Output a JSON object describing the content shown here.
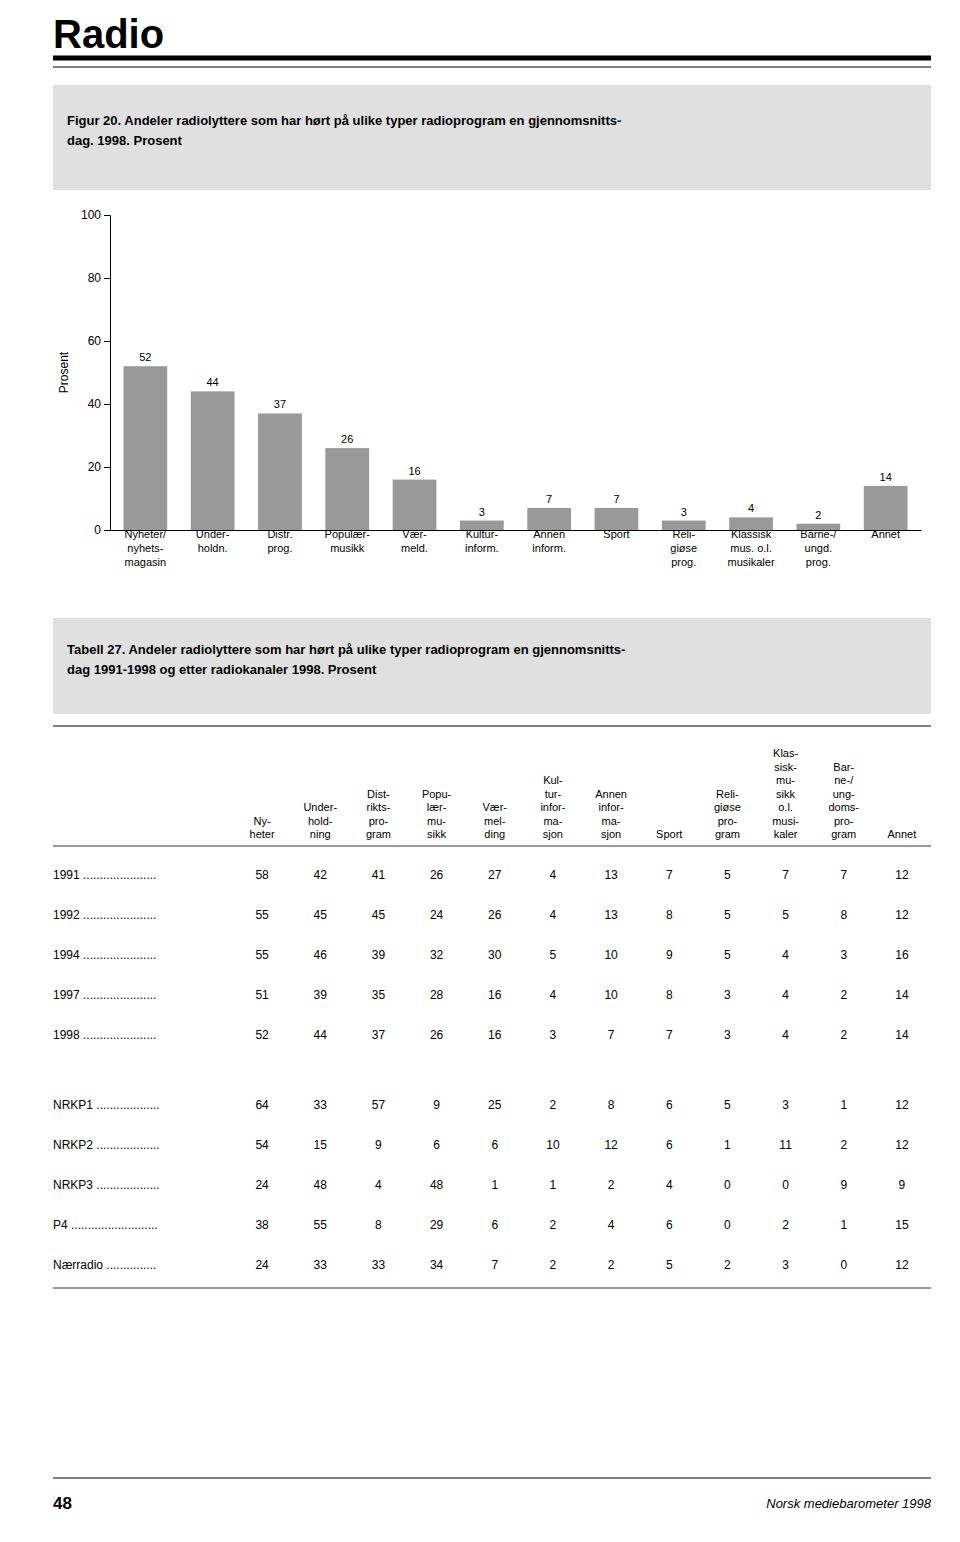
{
  "heading": "Radio",
  "chart_data": [
    {
      "type": "bar",
      "title": "Figur 20.  Andeler radiolyttere som har hørt på ulike typer radioprogram en gjennomsnitts-\ndag. 1998. Prosent",
      "ylabel": "Prosent",
      "categories": [
        "Nyheter/\nnyhets-\nmagasin",
        "Under-\nholdn.",
        "Distr.\nprog.",
        "Populær-\nmusikk",
        "Vær-\nmeld.",
        "Kultur-\ninform.",
        "Annen\ninform.",
        "Sport",
        "Reli-\ngiøse\nprog.",
        "Klassisk\nmus. o.l.\nmusikaler",
        "Barne-/\nungd.\nprog.",
        "Annet"
      ],
      "values": [
        52,
        44,
        37,
        26,
        16,
        3,
        7,
        7,
        3,
        4,
        2,
        14
      ],
      "color": "#999999",
      "ylim": [
        0,
        100
      ],
      "yticks": [
        0,
        20,
        40,
        60,
        80,
        100
      ],
      "grid": false,
      "data_labels": true
    },
    {
      "type": "table",
      "title": "Tabell 27.  Andeler radiolyttere som har hørt på ulike typer radioprogram en gjennomsnitts-\ndag 1991-1998 og etter radiokanaler 1998. Prosent",
      "columns": [
        "Ny-\nheter",
        "Under-\nhold-\nning",
        "Dist-\nrikts-\npro-\ngram",
        "Popu-\nlær-\nmu-\nsikk",
        "Vær-\nmel-\nding",
        "Kul-\ntur-\ninfor-\nma-\nsjon",
        "Annen\ninfor-\nma-\nsjon",
        "Sport",
        "Reli-\ngiøse\npro-\ngram",
        "Klas-\nsisk-\nmu-\nsikk\no.l.\nmusi-\nkaler",
        "Bar-\nne-/\nung-\ndoms-\npro-\ngram",
        "Annet"
      ],
      "rows": [
        {
          "label": "1991 ......................",
          "values": [
            58,
            42,
            41,
            26,
            27,
            4,
            13,
            7,
            5,
            7,
            7,
            12
          ]
        },
        {
          "label": "1992 ......................",
          "values": [
            55,
            45,
            45,
            24,
            26,
            4,
            13,
            8,
            5,
            5,
            8,
            12
          ]
        },
        {
          "label": "1994 ......................",
          "values": [
            55,
            46,
            39,
            32,
            30,
            5,
            10,
            9,
            5,
            4,
            3,
            16
          ]
        },
        {
          "label": "1997 ......................",
          "values": [
            51,
            39,
            35,
            28,
            16,
            4,
            10,
            8,
            3,
            4,
            2,
            14
          ]
        },
        {
          "label": "1998 ......................",
          "values": [
            52,
            44,
            37,
            26,
            16,
            3,
            7,
            7,
            3,
            4,
            2,
            14
          ]
        },
        {
          "label": "NRKP1 ...................",
          "values": [
            64,
            33,
            57,
            9,
            25,
            2,
            8,
            6,
            5,
            3,
            1,
            12
          ]
        },
        {
          "label": "NRKP2 ...................",
          "values": [
            54,
            15,
            9,
            6,
            6,
            10,
            12,
            6,
            1,
            11,
            2,
            12
          ]
        },
        {
          "label": "NRKP3 ...................",
          "values": [
            24,
            48,
            4,
            48,
            1,
            1,
            2,
            4,
            0,
            0,
            9,
            9
          ]
        },
        {
          "label": "P4 ..........................",
          "values": [
            38,
            55,
            8,
            29,
            6,
            2,
            4,
            6,
            0,
            2,
            1,
            15
          ]
        },
        {
          "label": "Nærradio ...............",
          "values": [
            24,
            33,
            33,
            34,
            7,
            2,
            2,
            5,
            2,
            3,
            0,
            12
          ]
        }
      ]
    }
  ],
  "page_number": "48",
  "footer": "Norsk mediebarometer 1998"
}
